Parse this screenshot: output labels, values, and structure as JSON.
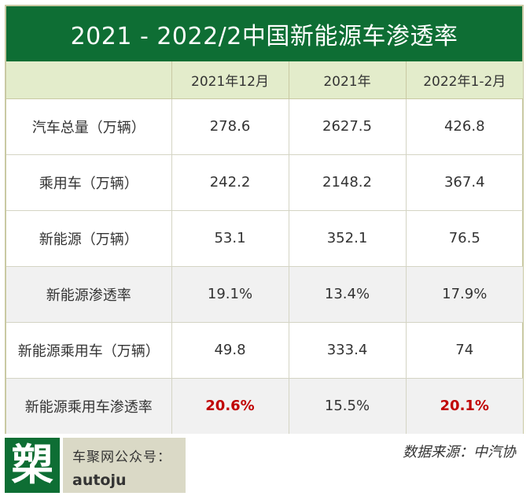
{
  "title": "2021 - 2022/2中国新能源车渗透率",
  "headers": [
    "",
    "2021年12月",
    "2021年",
    "2022年1-2月"
  ],
  "rows": [
    {
      "label": "汽车总量（万辆）",
      "values": [
        "278.6",
        "2627.5",
        "426.8"
      ]
    },
    {
      "label": "乘用车（万辆）",
      "values": [
        "242.2",
        "2148.2",
        "367.4"
      ]
    },
    {
      "label": "新能源（万辆）",
      "values": [
        "53.1",
        "352.1",
        "76.5"
      ]
    },
    {
      "label": "新能源渗透率",
      "values": [
        "19.1%",
        "13.4%",
        "17.9%"
      ]
    },
    {
      "label": "新能源乘用车（万辆）",
      "values": [
        "49.8",
        "333.4",
        "74"
      ]
    },
    {
      "label": "新能源乘用车渗透率",
      "values": [
        "20.6%",
        "15.5%",
        "20.1%"
      ]
    }
  ],
  "footer": {
    "logo_char": "槊",
    "account_label": "车聚网公众号：",
    "account_id": "autoju",
    "source": "数据来源：中汽协"
  },
  "colors": {
    "brand_green": "#0e6e34",
    "header_bg": "#e3eccb",
    "highlight_red": "#c00000",
    "footer_bg": "#dad9c6"
  }
}
